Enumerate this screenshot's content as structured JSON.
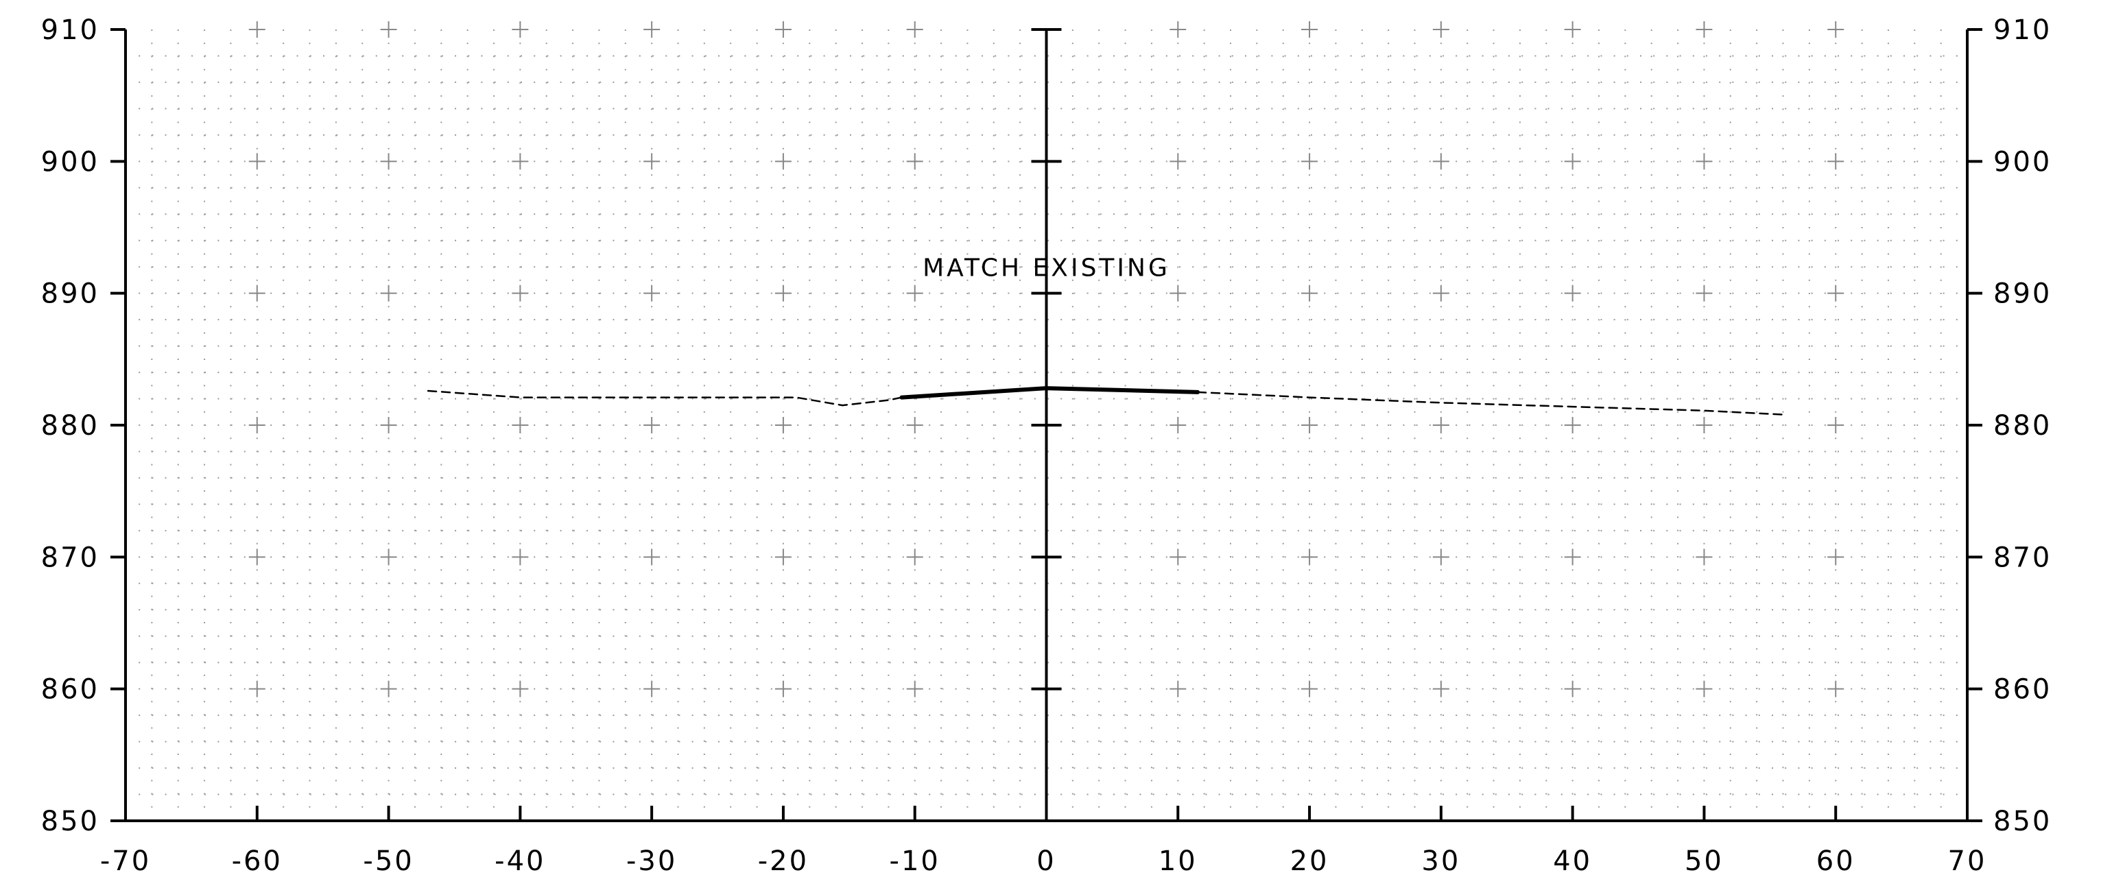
{
  "chart_data": {
    "type": "line",
    "title": "",
    "xlabel": "",
    "ylabel": "",
    "xlim": [
      -70,
      70
    ],
    "ylim": [
      850,
      910
    ],
    "x_ticks": [
      -70,
      -60,
      -50,
      -40,
      -30,
      -20,
      -10,
      0,
      10,
      20,
      30,
      40,
      50,
      60,
      70
    ],
    "x_tick_labels": [
      "-70",
      "-60",
      "-50",
      "-40",
      "-30",
      "-20",
      "-10",
      "0",
      "10",
      "20",
      "30",
      "40",
      "50",
      "60",
      "70"
    ],
    "y_ticks": [
      850,
      860,
      870,
      880,
      890,
      900,
      910
    ],
    "y_tick_labels": [
      "850",
      "860",
      "870",
      "880",
      "890",
      "900",
      "910"
    ],
    "grid": "dotted",
    "series": [
      {
        "style": "dashed",
        "x": [
          -47,
          -40,
          -36,
          -20,
          -19,
          -15.5,
          -12,
          -11
        ],
        "y": [
          882.6,
          882.1,
          882.1,
          882.1,
          882.1,
          881.5,
          881.9,
          882.1
        ]
      },
      {
        "style": "solid-bold",
        "x": [
          -11,
          0,
          11.5
        ],
        "y": [
          882.1,
          882.8,
          882.5
        ]
      },
      {
        "style": "dashed",
        "x": [
          11.5,
          20,
          30,
          40,
          50,
          56
        ],
        "y": [
          882.5,
          882.1,
          881.7,
          881.4,
          881.1,
          880.8
        ]
      }
    ],
    "annotations": [
      {
        "text": "MATCH EXISTING",
        "x": 0,
        "y": 891.3
      }
    ]
  }
}
